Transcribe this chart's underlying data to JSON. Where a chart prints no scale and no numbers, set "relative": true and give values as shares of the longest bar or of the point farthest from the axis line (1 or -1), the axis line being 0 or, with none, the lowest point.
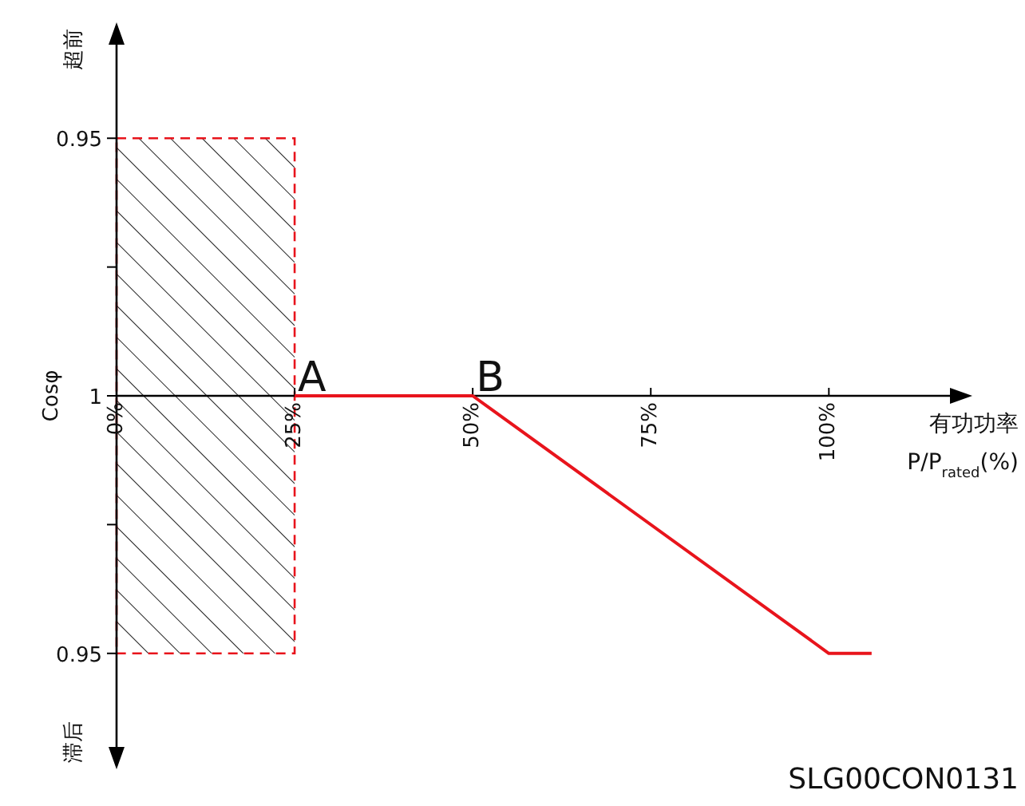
{
  "chart_data": {
    "type": "line",
    "xlabel": "有功功率\nP/P$_{rated}$(%)",
    "ylabel": "Cosφ",
    "relative": true,
    "xlim": [
      0,
      117
    ],
    "xticks": [
      {
        "value": 0,
        "label": "0%"
      },
      {
        "value": 25,
        "label": "25%"
      },
      {
        "value": 50,
        "label": "50%"
      },
      {
        "value": 75,
        "label": "75%"
      },
      {
        "value": 100,
        "label": "100%"
      }
    ],
    "series": [
      {
        "color": "#e8141c",
        "x": [
          25,
          50,
          100,
          106
        ],
        "values": [
          0,
          0,
          -1,
          -1
        ]
      }
    ],
    "line_style": "solid",
    "bands": [
      {
        "axis": "x",
        "from": 0,
        "to": 25,
        "label": null,
        "color": "#e8141c"
      }
    ],
    "annotations": [
      "0.95",
      "1",
      "0.95",
      "超前",
      "滞后",
      "SLG00CON0131",
      {
        "text": "A",
        "x": 25,
        "y": 0
      },
      {
        "text": "B",
        "x": 50,
        "y": 0
      }
    ]
  }
}
